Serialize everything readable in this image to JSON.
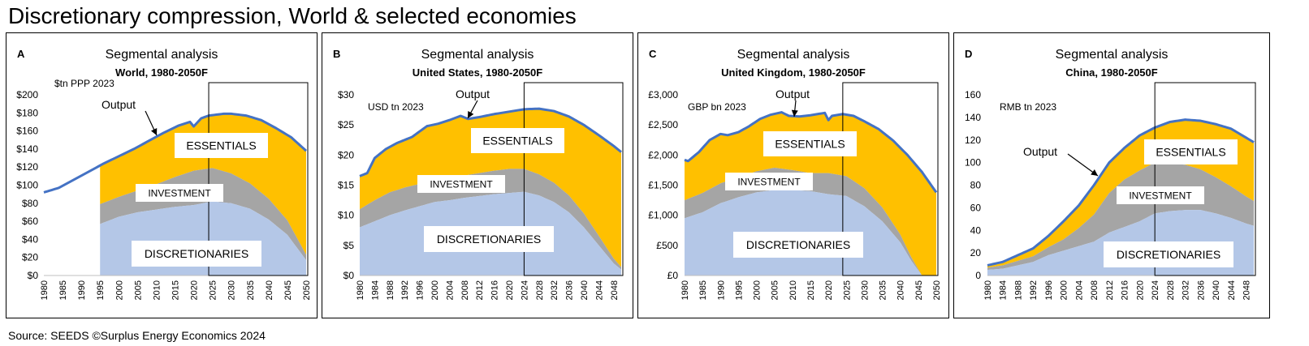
{
  "title": "Discretionary compression, World & selected economies",
  "source": "Source: SEEDS ©Surplus Energy Economics 2024",
  "colors": {
    "essentials": "#ffc000",
    "investment": "#a5a5a5",
    "discretionaries": "#b4c7e7",
    "output_line": "#4472c4",
    "frame": "#000000"
  },
  "chart_data": [
    {
      "type": "area",
      "panel": "A",
      "title": "Segmental analysis",
      "subtitle": "World, 1980-2050F",
      "unit": "$tn PPP 2023",
      "y_ticks": [
        "$200",
        "$180",
        "$160",
        "$140",
        "$120",
        "$100",
        "$80",
        "$60",
        "$40",
        "$20",
        "$0"
      ],
      "ylim": [
        0,
        200
      ],
      "xlim": [
        1980,
        2050
      ],
      "x_ticks": [
        "1980",
        "1985",
        "1990",
        "1995",
        "2000",
        "2005",
        "2010",
        "2015",
        "2020",
        "2025",
        "2030",
        "2035",
        "2040",
        "2045",
        "2050"
      ],
      "forecast_start": 2024,
      "labels": {
        "essentials": "ESSENTIALS",
        "investment": "INVESTMENT",
        "discretionaries": "DISCRETIONARIES",
        "output": "Output"
      },
      "output_x": [
        1980,
        1984,
        1988,
        1992,
        1996,
        2000,
        2004,
        2008,
        2012,
        2016,
        2019,
        2020,
        2022,
        2024,
        2028,
        2030,
        2034,
        2038,
        2042,
        2046,
        2050
      ],
      "output_y": [
        92,
        97,
        106,
        115,
        124,
        132,
        140,
        149,
        158,
        166,
        170,
        165,
        174,
        177,
        179,
        179,
        177,
        172,
        163,
        153,
        138
      ],
      "series": [
        {
          "name": "Discretionaries",
          "x": [
            1995,
            2000,
            2005,
            2010,
            2015,
            2020,
            2025,
            2030,
            2035,
            2040,
            2045,
            2050
          ],
          "y": [
            57,
            65,
            70,
            73,
            76,
            78,
            82,
            80,
            74,
            62,
            45,
            17
          ]
        },
        {
          "name": "Investment",
          "x": [
            1995,
            2000,
            2005,
            2010,
            2015,
            2020,
            2025,
            2030,
            2035,
            2040,
            2045,
            2050
          ],
          "y": [
            22,
            22,
            24,
            28,
            33,
            38,
            37,
            33,
            28,
            23,
            16,
            6
          ]
        }
      ],
      "data_start": 1995
    },
    {
      "type": "area",
      "panel": "B",
      "title": "Segmental analysis",
      "subtitle": "United States, 1980-2050F",
      "unit": "USD tn 2023",
      "y_ticks": [
        "$30",
        "$25",
        "$20",
        "$15",
        "$10",
        "$5",
        "$0"
      ],
      "ylim": [
        0,
        30
      ],
      "xlim": [
        1980,
        2050
      ],
      "x_ticks": [
        "1980",
        "1984",
        "1988",
        "1992",
        "1996",
        "2000",
        "2004",
        "2008",
        "2012",
        "2016",
        "2020",
        "2024",
        "2028",
        "2032",
        "2036",
        "2040",
        "2044",
        "2048"
      ],
      "forecast_start": 2024,
      "labels": {
        "essentials": "ESSENTIALS",
        "investment": "INVESTMENT",
        "discretionaries": "DISCRETIONARIES",
        "output": "Output"
      },
      "output_x": [
        1980,
        1982,
        1984,
        1987,
        1990,
        1994,
        1998,
        2001,
        2004,
        2007,
        2009,
        2012,
        2016,
        2020,
        2024,
        2028,
        2032,
        2036,
        2040,
        2044,
        2048,
        2050
      ],
      "output_y": [
        16.5,
        17,
        19.5,
        21,
        22,
        23,
        24.8,
        25.2,
        25.8,
        26.5,
        26,
        26.3,
        26.8,
        27.2,
        27.6,
        27.7,
        27.3,
        26.4,
        25,
        23.3,
        21.5,
        20.5
      ],
      "series": [
        {
          "name": "Discretionaries",
          "x": [
            1980,
            1984,
            1988,
            1992,
            1996,
            2000,
            2004,
            2008,
            2012,
            2016,
            2020,
            2024,
            2028,
            2032,
            2036,
            2040,
            2044,
            2048,
            2050
          ],
          "y": [
            8,
            9,
            10,
            10.8,
            11.5,
            12.2,
            12.5,
            12.9,
            13.2,
            13.5,
            13.7,
            13.9,
            13.3,
            12.2,
            10.5,
            8,
            5,
            2,
            1
          ]
        },
        {
          "name": "Investment",
          "x": [
            1980,
            1984,
            1988,
            1992,
            1996,
            2000,
            2004,
            2008,
            2012,
            2016,
            2020,
            2024,
            2028,
            2032,
            2036,
            2040,
            2044,
            2048,
            2050
          ],
          "y": [
            3,
            3.5,
            3.8,
            3.8,
            3.7,
            3.8,
            3.8,
            3.7,
            3.8,
            3.9,
            4,
            3.8,
            3.5,
            3.2,
            2.8,
            2.3,
            1.6,
            0.8,
            0.4
          ]
        }
      ],
      "data_start": 1980
    },
    {
      "type": "area",
      "panel": "C",
      "title": "Segmental analysis",
      "subtitle": "United Kingdom, 1980-2050F",
      "unit": "GBP bn 2023",
      "y_ticks": [
        "£3,000",
        "£2,500",
        "£2,000",
        "£1,500",
        "£1,000",
        "£500",
        "£0"
      ],
      "ylim": [
        0,
        3000
      ],
      "xlim": [
        1980,
        2050
      ],
      "x_ticks": [
        "1980",
        "1985",
        "1990",
        "1995",
        "2000",
        "2005",
        "2010",
        "2015",
        "2020",
        "2025",
        "2030",
        "2035",
        "2040",
        "2045",
        "2050"
      ],
      "forecast_start": 2024,
      "labels": {
        "essentials": "ESSENTIALS",
        "investment": "INVESTMENT",
        "discretionaries": "DISCRETIONARIES",
        "output": "Output"
      },
      "output_x": [
        1980,
        1981,
        1984,
        1987,
        1990,
        1992,
        1995,
        1998,
        2001,
        2004,
        2007,
        2009,
        2012,
        2015,
        2019,
        2020,
        2021,
        2024,
        2027,
        2030,
        2034,
        2038,
        2042,
        2046,
        2050
      ],
      "output_y": [
        1920,
        1900,
        2050,
        2250,
        2350,
        2330,
        2380,
        2480,
        2600,
        2670,
        2710,
        2650,
        2640,
        2660,
        2700,
        2580,
        2650,
        2680,
        2650,
        2560,
        2430,
        2240,
        2000,
        1720,
        1380
      ],
      "series": [
        {
          "name": "Discretionaries",
          "x": [
            1980,
            1985,
            1990,
            1995,
            2000,
            2005,
            2010,
            2015,
            2020,
            2025,
            2030,
            2035,
            2040,
            2043,
            2046,
            2050
          ],
          "y": [
            950,
            1050,
            1200,
            1300,
            1380,
            1420,
            1420,
            1400,
            1350,
            1320,
            1150,
            900,
            550,
            250,
            0,
            0
          ]
        },
        {
          "name": "Investment",
          "x": [
            1980,
            1985,
            1990,
            1995,
            2000,
            2005,
            2010,
            2015,
            2020,
            2025,
            2030,
            2035,
            2040,
            2043,
            2046,
            2050
          ],
          "y": [
            300,
            320,
            330,
            330,
            350,
            370,
            330,
            300,
            350,
            330,
            300,
            230,
            130,
            60,
            0,
            0
          ]
        }
      ],
      "data_start": 1980
    },
    {
      "type": "area",
      "panel": "D",
      "title": "Segmental analysis",
      "subtitle": "China, 1980-2050F",
      "unit": "RMB tn 2023",
      "y_ticks": [
        "160",
        "140",
        "120",
        "100",
        "80",
        "60",
        "40",
        "20",
        "0"
      ],
      "ylim": [
        0,
        160
      ],
      "xlim": [
        1980,
        2050
      ],
      "x_ticks": [
        "1980",
        "1984",
        "1988",
        "1992",
        "1996",
        "2000",
        "2004",
        "2008",
        "2012",
        "2016",
        "2020",
        "2024",
        "2028",
        "2032",
        "2036",
        "2040",
        "2044",
        "2048"
      ],
      "forecast_start": 2024,
      "labels": {
        "essentials": "ESSENTIALS",
        "investment": "INVESTMENT",
        "discretionaries": "DISCRETIONARIES",
        "output": "Output"
      },
      "output_x": [
        1980,
        1984,
        1988,
        1992,
        1996,
        2000,
        2004,
        2008,
        2012,
        2016,
        2020,
        2024,
        2028,
        2032,
        2036,
        2040,
        2044,
        2048,
        2050
      ],
      "output_y": [
        9,
        12,
        18,
        24,
        35,
        48,
        62,
        80,
        100,
        113,
        124,
        131,
        136,
        138,
        137,
        134,
        130,
        122,
        118
      ],
      "series": [
        {
          "name": "Discretionaries",
          "x": [
            1980,
            1984,
            1988,
            1992,
            1996,
            2000,
            2004,
            2008,
            2012,
            2016,
            2020,
            2024,
            2028,
            2032,
            2036,
            2040,
            2044,
            2048,
            2050
          ],
          "y": [
            5,
            6,
            9,
            12,
            18,
            22,
            26,
            30,
            38,
            43,
            48,
            55,
            57,
            58,
            58,
            55,
            51,
            46,
            44
          ]
        },
        {
          "name": "Investment",
          "x": [
            1980,
            1984,
            1988,
            1992,
            1996,
            2000,
            2004,
            2008,
            2012,
            2016,
            2020,
            2024,
            2028,
            2032,
            2036,
            2040,
            2044,
            2048,
            2050
          ],
          "y": [
            2,
            3,
            4,
            5,
            7,
            10,
            16,
            24,
            35,
            42,
            45,
            45,
            43,
            40,
            36,
            32,
            28,
            24,
            22
          ]
        }
      ],
      "data_start": 1980
    }
  ]
}
